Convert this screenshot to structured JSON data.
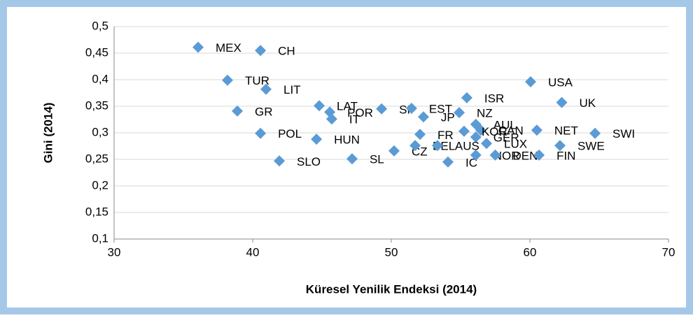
{
  "chart_data": {
    "type": "scatter",
    "xlabel": "Küresel Yenilik Endeksi (2014)",
    "ylabel": "Gini (2014)",
    "xlim": [
      30,
      70
    ],
    "xticks": [
      30,
      40,
      50,
      60,
      70
    ],
    "ylim": [
      0.1,
      0.5
    ],
    "yticks": [
      {
        "value": 0.1,
        "label": "0,1"
      },
      {
        "value": 0.15,
        "label": "0,15"
      },
      {
        "value": 0.2,
        "label": "0,2"
      },
      {
        "value": 0.25,
        "label": "0,25"
      },
      {
        "value": 0.3,
        "label": "0,3"
      },
      {
        "value": 0.35,
        "label": "0,35"
      },
      {
        "value": 0.4,
        "label": "0,4"
      },
      {
        "value": 0.45,
        "label": "0,45"
      },
      {
        "value": 0.5,
        "label": "0,5"
      }
    ],
    "grid": true,
    "series": [
      {
        "color": "#5b9bd5",
        "labels": [
          "MEX",
          "CH",
          "TUR",
          "LIT",
          "GR",
          "POL",
          "SLO",
          "HUN",
          "LAT",
          "POR",
          "IT",
          "SL",
          "SP",
          "EST",
          "JP",
          "NZ",
          "ISR",
          "AUL",
          "CAN",
          "KOR",
          "GER",
          "LUX",
          "FR",
          "CZ",
          "BEL",
          "AUS",
          "IC",
          "NOR",
          "DEN",
          "FIN",
          "SWE",
          "NET",
          "SWI",
          "UK",
          "USA"
        ],
        "x": [
          36.06,
          40.56,
          38.18,
          40.96,
          38.89,
          40.56,
          41.92,
          44.6,
          44.8,
          45.56,
          45.7,
          47.17,
          49.3,
          51.46,
          52.32,
          54.9,
          55.45,
          56.1,
          56.46,
          55.25,
          56.1,
          56.87,
          52.07,
          50.2,
          51.72,
          53.33,
          54.09,
          56.1,
          57.5,
          60.66,
          62.17,
          60.5,
          64.7,
          62.3,
          60.05
        ],
        "values": [
          0.461,
          0.455,
          0.399,
          0.382,
          0.341,
          0.299,
          0.247,
          0.288,
          0.351,
          0.339,
          0.326,
          0.251,
          0.345,
          0.346,
          0.33,
          0.338,
          0.366,
          0.316,
          0.305,
          0.303,
          0.292,
          0.28,
          0.297,
          0.266,
          0.276,
          0.276,
          0.245,
          0.258,
          0.258,
          0.258,
          0.276,
          0.305,
          0.299,
          0.357,
          0.396
        ]
      }
    ]
  }
}
